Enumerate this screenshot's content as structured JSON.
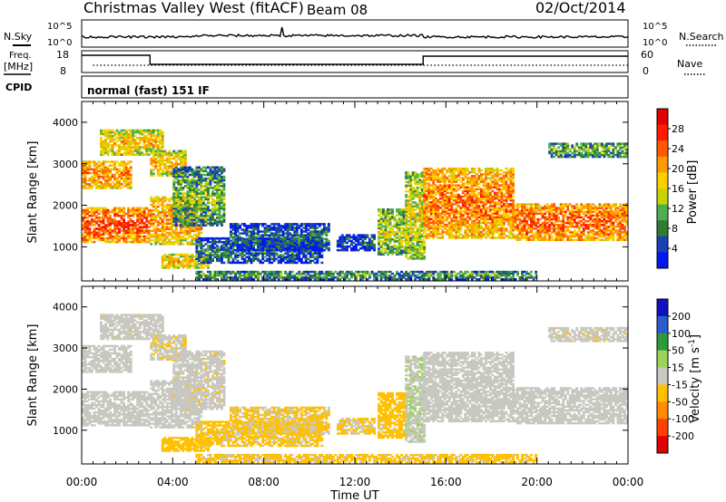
{
  "header": {
    "station": "Christmas Valley West (fitACF)",
    "beam": "Beam 08",
    "date": "02/Oct/2014"
  },
  "left_labels": {
    "nsky": "N.Sky",
    "freq_line1": "Freq.",
    "freq_line2": "[MHz]",
    "cpid": "CPID"
  },
  "right_labels": {
    "nsearch": "N.Search",
    "nave": "Nave"
  },
  "noise_axis": {
    "top": "10^5",
    "bottom": "10^0"
  },
  "freq_axis": {
    "top": "18",
    "bottom": "8"
  },
  "nave_axis": {
    "top": "60",
    "bottom": "0"
  },
  "cpid_text": "normal (fast) 151 IF",
  "power_panel": {
    "ylabel": "Slant Range [km]",
    "yticks": [
      "1000",
      "2000",
      "3000",
      "4000"
    ],
    "colorbar_label": "Power [dB]",
    "colorbar_ticks": [
      "4",
      "8",
      "12",
      "16",
      "20",
      "24",
      "28"
    ],
    "colors": [
      "#0018f0",
      "#1a3fb8",
      "#2e7d32",
      "#4caf50",
      "#c8d400",
      "#ffd000",
      "#ff9a00",
      "#ff5a00",
      "#ff1a00",
      "#e00000"
    ]
  },
  "velocity_panel": {
    "ylabel": "Slant Range [km]",
    "yticks": [
      "1000",
      "2000",
      "3000",
      "4000"
    ],
    "colorbar_label": "Velocity [m s",
    "colorbar_label_sup": "-1",
    "colorbar_label_end": "]",
    "colorbar_ticks": [
      "200",
      "100",
      "50",
      "15",
      "-15",
      "-50",
      "-100",
      "-200"
    ],
    "colors": [
      "#1010c0",
      "#2a5cd0",
      "#2f9a3a",
      "#9bd35a",
      "#c8c8c0",
      "#ffc000",
      "#ff8c00",
      "#ff4000",
      "#e00000"
    ]
  },
  "time_axis": {
    "label": "Time UT",
    "ticks": [
      "00:00",
      "04:00",
      "08:00",
      "12:00",
      "16:00",
      "20:00",
      "00:00"
    ]
  },
  "chart_data": {
    "type": "heatmap",
    "x_range_hours": [
      0,
      24
    ],
    "y_range_km": [
      180,
      4500
    ],
    "power_range_db": [
      0,
      30
    ],
    "velocity_range_ms": [
      -250,
      250
    ],
    "frequency_mhz": [
      {
        "from": 0,
        "to": 3,
        "value": 16.5
      },
      {
        "from": 3,
        "to": 15,
        "value": 11.5
      },
      {
        "from": 15,
        "to": 24,
        "value": 16.0
      }
    ],
    "echo_regions": [
      {
        "name": "",
        "t0": 0.0,
        "t1": 3.0,
        "r0": 1100,
        "r1": 1950,
        "power": 24,
        "velocity": -5
      },
      {
        "name": "",
        "t0": 0.0,
        "t1": 2.2,
        "r0": 2400,
        "r1": 3050,
        "power": 21,
        "velocity": -5
      },
      {
        "name": "",
        "t0": 0.8,
        "t1": 3.6,
        "r0": 3200,
        "r1": 3800,
        "power": 18,
        "velocity": -8
      },
      {
        "name": "",
        "t0": 3.0,
        "t1": 5.2,
        "r0": 1050,
        "r1": 2200,
        "power": 20,
        "velocity": -8
      },
      {
        "name": "",
        "t0": 3.0,
        "t1": 4.5,
        "r0": 2700,
        "r1": 3300,
        "power": 18,
        "velocity": -20
      },
      {
        "name": "",
        "t0": 4.0,
        "t1": 6.2,
        "r0": 1500,
        "r1": 2900,
        "power": 12,
        "velocity": -10
      },
      {
        "name": "",
        "t0": 3.5,
        "t1": 5.5,
        "r0": 480,
        "r1": 800,
        "power": 18,
        "velocity": -60
      },
      {
        "name": "",
        "t0": 5.0,
        "t1": 10.5,
        "r0": 600,
        "r1": 1200,
        "power": 8,
        "velocity": -40
      },
      {
        "name": "",
        "t0": 6.5,
        "t1": 10.8,
        "r0": 900,
        "r1": 1550,
        "power": 7,
        "velocity": -35
      },
      {
        "name": "",
        "t0": 11.2,
        "t1": 12.8,
        "r0": 900,
        "r1": 1300,
        "power": 6,
        "velocity": -30
      },
      {
        "name": "",
        "t0": 13.0,
        "t1": 14.2,
        "r0": 800,
        "r1": 1900,
        "power": 14,
        "velocity": -45
      },
      {
        "name": "",
        "t0": 14.2,
        "t1": 15.0,
        "r0": 700,
        "r1": 2800,
        "power": 16,
        "velocity": 20
      },
      {
        "name": "",
        "t0": 15.0,
        "t1": 19.0,
        "r0": 1200,
        "r1": 2900,
        "power": 22,
        "velocity": -5
      },
      {
        "name": "",
        "t0": 19.0,
        "t1": 24.0,
        "r0": 1150,
        "r1": 2050,
        "power": 23,
        "velocity": -3
      },
      {
        "name": "",
        "t0": 20.5,
        "t1": 24.0,
        "r0": 3150,
        "r1": 3500,
        "power": 12,
        "velocity": -10
      },
      {
        "name": "",
        "t0": 5.0,
        "t1": 20.0,
        "r0": 200,
        "r1": 420,
        "power": 10,
        "velocity": -40
      }
    ]
  }
}
